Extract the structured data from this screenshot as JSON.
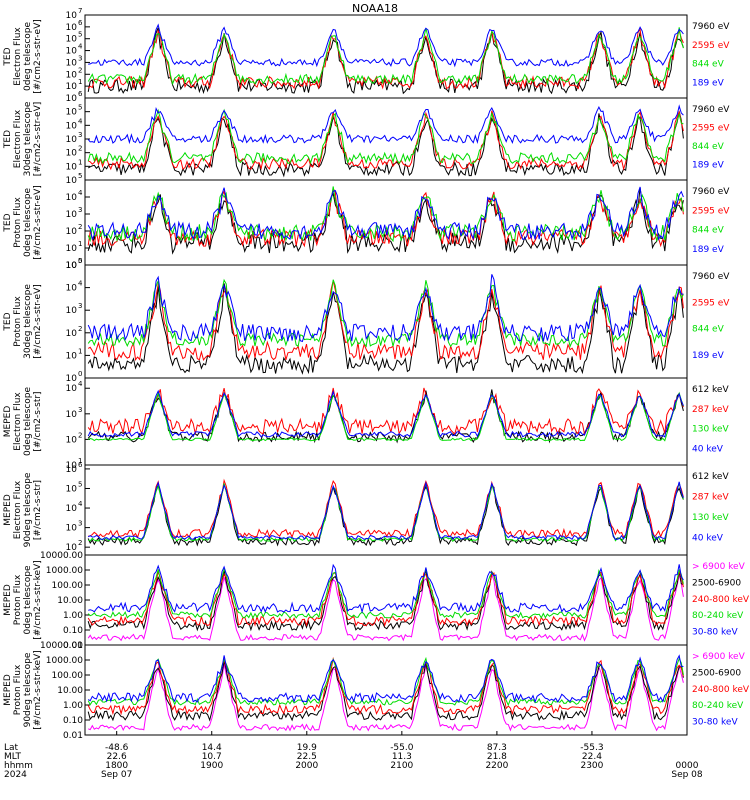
{
  "title": "NOAA18",
  "chart_data": [
    {
      "type": "line",
      "ylabel_lines": [
        "TED",
        "Electron Flux",
        "0deg telescope",
        "[#/cm2-s-str-eV]"
      ],
      "y_ticks": [
        "10",
        "10",
        "10",
        "10",
        "10",
        "10",
        "10"
      ],
      "y_exps": [
        "1",
        "2",
        "3",
        "4",
        "5",
        "6",
        "7"
      ],
      "ylim_log10": [
        0,
        7
      ],
      "series": [
        {
          "name": "7960 eV",
          "color": "#000000",
          "level": 1.0,
          "noise": 0.6
        },
        {
          "name": "2595 eV",
          "color": "#ff0000",
          "level": 1.3,
          "noise": 0.5
        },
        {
          "name": "844 eV",
          "color": "#00dd00",
          "level": 1.6,
          "noise": 0.4
        },
        {
          "name": "189 eV",
          "color": "#0000ff",
          "level": 3.0,
          "noise": 0.3
        }
      ]
    },
    {
      "type": "line",
      "ylabel_lines": [
        "TED",
        "Electron Flux",
        "30deg telescope",
        "[#/cm2-s-str-eV]"
      ],
      "y_ticks": [
        "10",
        "10",
        "10",
        "10",
        "10",
        "10"
      ],
      "y_exps": [
        "1",
        "2",
        "3",
        "4",
        "5",
        "6"
      ],
      "ylim_log10": [
        0,
        6
      ],
      "series": [
        {
          "name": "7960 eV",
          "color": "#000000",
          "level": 0.8,
          "noise": 0.5
        },
        {
          "name": "2595 eV",
          "color": "#ff0000",
          "level": 1.2,
          "noise": 0.4
        },
        {
          "name": "844 eV",
          "color": "#00dd00",
          "level": 1.6,
          "noise": 0.4
        },
        {
          "name": "189 eV",
          "color": "#0000ff",
          "level": 3.0,
          "noise": 0.3
        }
      ]
    },
    {
      "type": "line",
      "ylabel_lines": [
        "TED",
        "Proton Flux",
        "0deg telescope",
        "[#/cm2-s-str-eV]"
      ],
      "y_ticks": [
        "10",
        "10",
        "10",
        "10",
        "10",
        "10"
      ],
      "y_exps": [
        "0",
        "1",
        "2",
        "3",
        "4",
        "5"
      ],
      "ylim_log10": [
        0,
        5
      ],
      "series": [
        {
          "name": "7960 eV",
          "color": "#000000",
          "level": 1.3,
          "noise": 0.6
        },
        {
          "name": "2595 eV",
          "color": "#ff0000",
          "level": 1.6,
          "noise": 0.5
        },
        {
          "name": "844 eV",
          "color": "#00dd00",
          "level": 1.9,
          "noise": 0.5
        },
        {
          "name": "189 eV",
          "color": "#0000ff",
          "level": 2.0,
          "noise": 0.5
        }
      ]
    },
    {
      "type": "line",
      "ylabel_lines": [
        "TED",
        "Proton Flux",
        "30deg telescope",
        "[#/cm2-s-str-eV]"
      ],
      "y_ticks": [
        "10",
        "10",
        "10",
        "10",
        "10",
        "10"
      ],
      "y_exps": [
        "0",
        "1",
        "2",
        "3",
        "4",
        "5"
      ],
      "ylim_log10": [
        0,
        5
      ],
      "series": [
        {
          "name": "7960 eV",
          "color": "#000000",
          "level": 0.6,
          "noise": 0.4
        },
        {
          "name": "2595 eV",
          "color": "#ff0000",
          "level": 1.2,
          "noise": 0.4
        },
        {
          "name": "844 eV",
          "color": "#00dd00",
          "level": 1.7,
          "noise": 0.3
        },
        {
          "name": "189 eV",
          "color": "#0000ff",
          "level": 2.0,
          "noise": 0.4
        }
      ]
    },
    {
      "type": "line",
      "ylabel_lines": [
        "MEPED",
        "Electron Flux",
        "0deg telescope",
        "[#/cm2-s-str]"
      ],
      "y_ticks": [
        "10",
        "10",
        "10",
        "10"
      ],
      "y_exps": [
        "1",
        "2",
        "3",
        "4"
      ],
      "ylim_log10": [
        1,
        4.4
      ],
      "series": [
        {
          "name": "612 keV",
          "color": "#000000",
          "level": 2.1,
          "noise": 0.2
        },
        {
          "name": "287 keV",
          "color": "#ff0000",
          "level": 2.5,
          "noise": 0.3
        },
        {
          "name": "130 keV",
          "color": "#00dd00",
          "level": 2.0,
          "noise": 0.05
        },
        {
          "name": "40 keV",
          "color": "#0000ff",
          "level": 2.2,
          "noise": 0.1
        }
      ]
    },
    {
      "type": "line",
      "ylabel_lines": [
        "MEPED",
        "Electron Flux",
        "90deg telescope",
        "[#/cm2-s-str]"
      ],
      "y_ticks": [
        "10",
        "10",
        "10",
        "10",
        "10"
      ],
      "y_exps": [
        "2",
        "3",
        "4",
        "5",
        "6"
      ],
      "ylim_log10": [
        1.6,
        6.2
      ],
      "series": [
        {
          "name": "612 keV",
          "color": "#000000",
          "level": 2.3,
          "noise": 0.2
        },
        {
          "name": "287 keV",
          "color": "#ff0000",
          "level": 2.7,
          "noise": 0.2
        },
        {
          "name": "130 keV",
          "color": "#00dd00",
          "level": 2.4,
          "noise": 0.1
        },
        {
          "name": "40 keV",
          "color": "#0000ff",
          "level": 2.5,
          "noise": 0.1
        }
      ]
    },
    {
      "type": "line",
      "ylabel_lines": [
        "MEPED",
        "Proton Flux",
        "0deg telescope",
        "[#/cm2-s-str-keV]"
      ],
      "y_ticks": [
        "0.01",
        "0.10",
        "1.00",
        "10.00",
        "100.00",
        "1000.00",
        "10000.00"
      ],
      "ylim_log10": [
        -2,
        4
      ],
      "series": [
        {
          "name": "> 6900 keV",
          "color": "#ff00ff",
          "level": -1.5,
          "noise": 0.2
        },
        {
          "name": "2500-6900",
          "color": "#000000",
          "level": -0.7,
          "noise": 0.3
        },
        {
          "name": "240-800 keV",
          "color": "#ff0000",
          "level": -0.4,
          "noise": 0.3
        },
        {
          "name": "80-240 keV",
          "color": "#00dd00",
          "level": 0.0,
          "noise": 0.2
        },
        {
          "name": "30-80 keV",
          "color": "#0000ff",
          "level": 0.5,
          "noise": 0.3
        }
      ]
    },
    {
      "type": "line",
      "ylabel_lines": [
        "MEPED",
        "Proton Flux",
        "90deg telescope",
        "[#/cm2-s-str-keV]"
      ],
      "y_ticks": [
        "0.01",
        "0.10",
        "1.00",
        "10.00",
        "100.00",
        "1000.00",
        "10000.00"
      ],
      "ylim_log10": [
        -2,
        4
      ],
      "series": [
        {
          "name": "> 6900 keV",
          "color": "#ff00ff",
          "level": -1.5,
          "noise": 0.2
        },
        {
          "name": "2500-6900",
          "color": "#000000",
          "level": -0.7,
          "noise": 0.3
        },
        {
          "name": "240-800 keV",
          "color": "#ff0000",
          "level": -0.3,
          "noise": 0.3
        },
        {
          "name": "80-240 keV",
          "color": "#00dd00",
          "level": 0.2,
          "noise": 0.2
        },
        {
          "name": "30-80 keV",
          "color": "#0000ff",
          "level": 0.5,
          "noise": 0.3
        }
      ]
    }
  ],
  "x_axis": {
    "row_labels": [
      "Lat",
      "MLT",
      "hhmm",
      "2024"
    ],
    "ticks": [
      {
        "lat": "-48.6",
        "mlt": "22.6",
        "hhmm": "1800",
        "date": "Sep 07"
      },
      {
        "lat": "14.4",
        "mlt": "10.7",
        "hhmm": "1900",
        "date": ""
      },
      {
        "lat": "19.9",
        "mlt": "22.5",
        "hhmm": "2000",
        "date": ""
      },
      {
        "lat": "-55.0",
        "mlt": "11.3",
        "hhmm": "2100",
        "date": ""
      },
      {
        "lat": "87.3",
        "mlt": "21.8",
        "hhmm": "2200",
        "date": ""
      },
      {
        "lat": "-55.3",
        "mlt": "22.4",
        "hhmm": "2300",
        "date": ""
      },
      {
        "lat": "",
        "mlt": "",
        "hhmm": "0000",
        "date": "Sep 08"
      }
    ]
  },
  "passes_hhmm": [
    "1826",
    "1908",
    "2017",
    "2115",
    "2157",
    "2305",
    "2330",
    "2355"
  ]
}
